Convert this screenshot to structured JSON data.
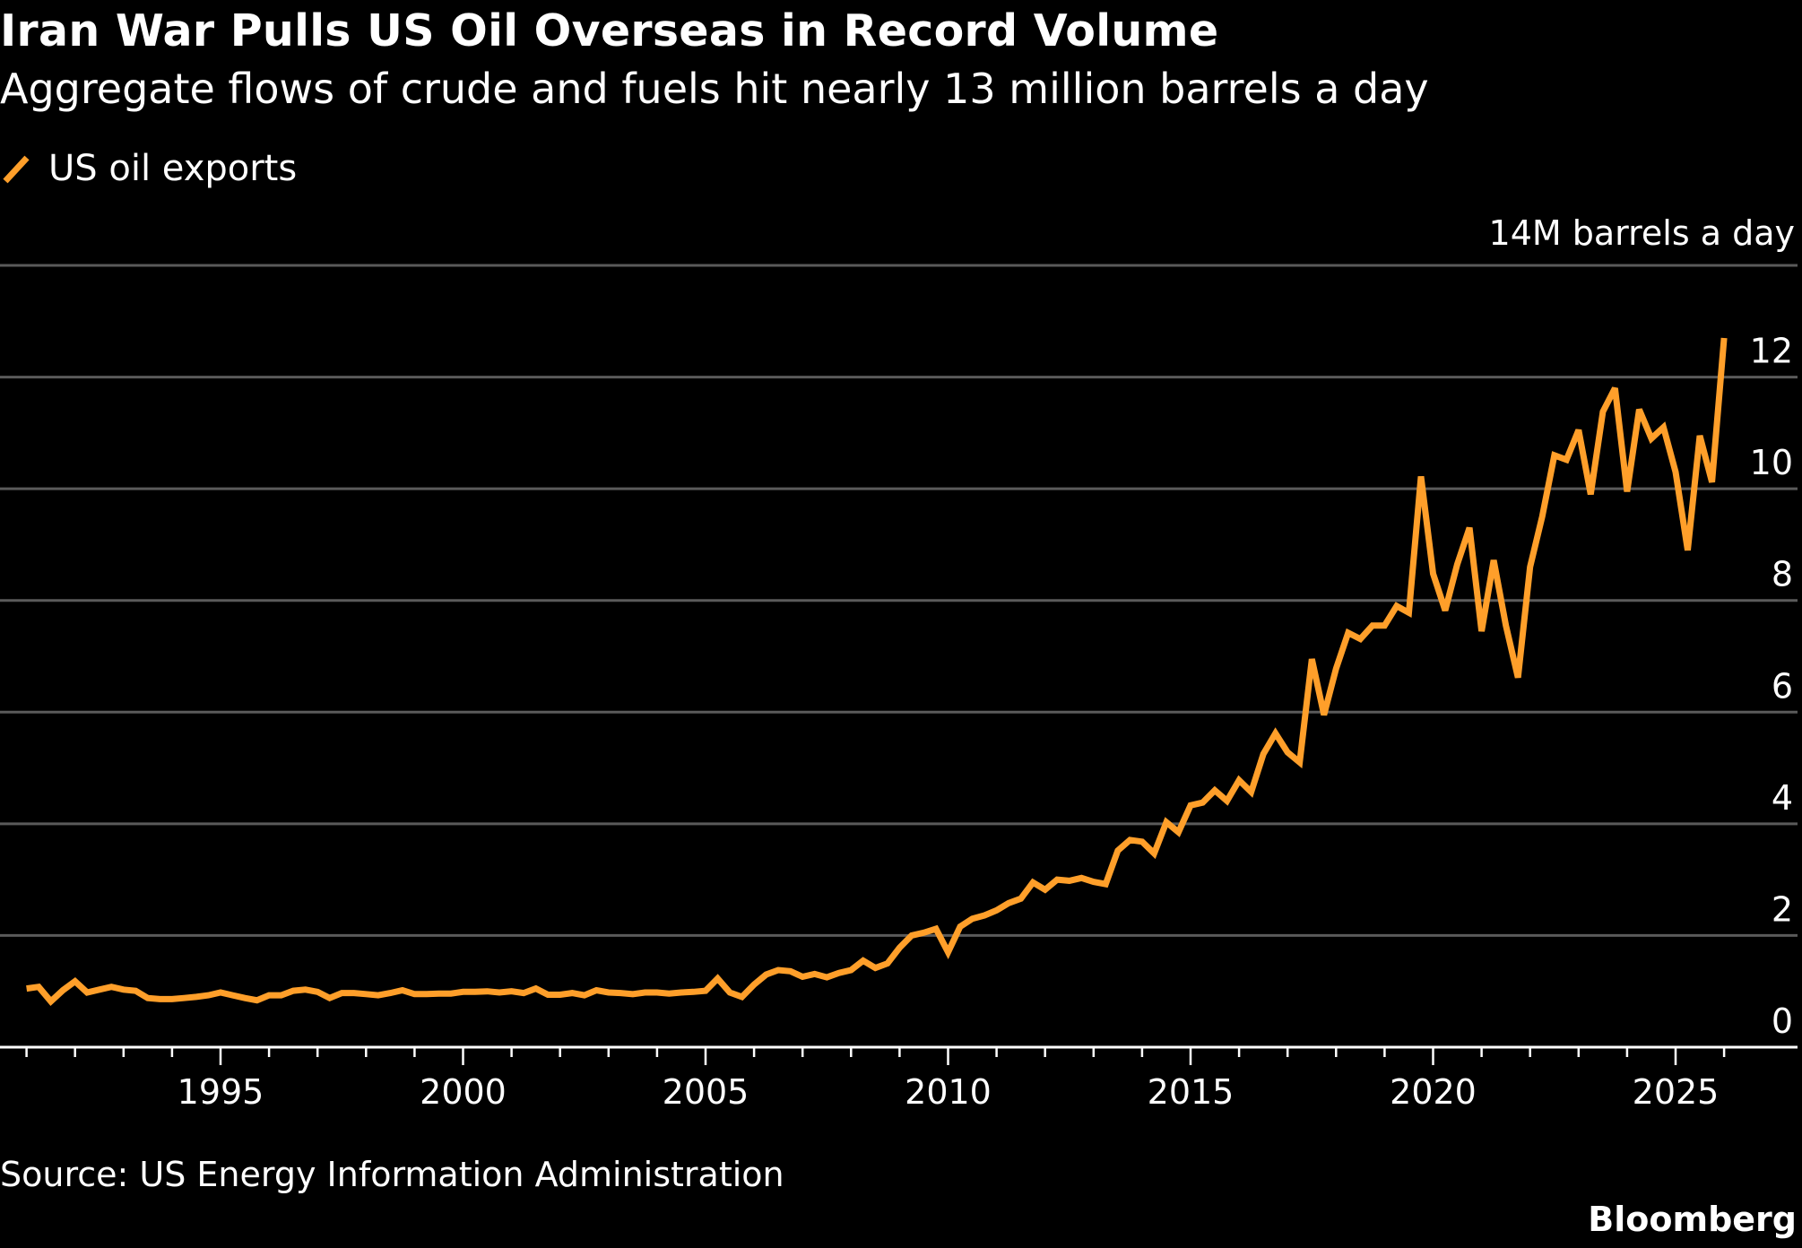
{
  "header": {
    "title": "Iran War Pulls US Oil Overseas in Record Volume",
    "subtitle": "Aggregate flows of crude and fuels hit nearly 13 million barrels a day"
  },
  "legend": {
    "items": [
      {
        "label": "US oil exports",
        "color": "#FF9F2A",
        "icon": "diagonal-line-icon"
      }
    ]
  },
  "footer": {
    "source": "Source: US Energy Information Administration",
    "brand": "Bloomberg"
  },
  "colors": {
    "background": "#000000",
    "series": "#FF9F2A",
    "grid": "#5a5a5a",
    "axis": "#ffffff",
    "text": "#ffffff"
  },
  "chart_data": {
    "type": "line",
    "title": "Iran War Pulls US Oil Overseas in Record Volume",
    "subtitle": "Aggregate flows of crude and fuels hit nearly 13 million barrels a day",
    "xlabel": "",
    "ylabel": "14M barrels a day",
    "unit_label": "14M barrels a day",
    "frequency": "quarterly",
    "x_start": 1991.0,
    "x_step": 0.25,
    "xlim": [
      1990.8,
      2027.3
    ],
    "ylim": [
      0,
      14
    ],
    "y_ticks": [
      0,
      2,
      4,
      6,
      8,
      10,
      12,
      14
    ],
    "y_tick_labels": [
      "0",
      "2",
      "4",
      "6",
      "8",
      "10",
      "12",
      "14M barrels a day"
    ],
    "x_ticks_major": [
      1995,
      2000,
      2005,
      2010,
      2015,
      2020,
      2025
    ],
    "x_tick_labels": [
      "1995",
      "2000",
      "2005",
      "2010",
      "2015",
      "2020",
      "2025"
    ],
    "x_ticks_minor_from": 1991,
    "x_ticks_minor_to": 2026,
    "grid": true,
    "legend_position": "top-left",
    "y_axis_side": "right",
    "series": [
      {
        "name": "US oil exports",
        "color": "#FF9F2A",
        "values": [
          1.05,
          1.08,
          0.82,
          1.02,
          1.18,
          0.98,
          1.03,
          1.08,
          1.03,
          1.01,
          0.88,
          0.86,
          0.86,
          0.88,
          0.9,
          0.93,
          0.98,
          0.93,
          0.88,
          0.84,
          0.93,
          0.93,
          1.01,
          1.03,
          0.99,
          0.88,
          0.97,
          0.97,
          0.95,
          0.93,
          0.97,
          1.02,
          0.95,
          0.95,
          0.96,
          0.96,
          0.99,
          0.99,
          1.0,
          0.98,
          1.0,
          0.97,
          1.05,
          0.94,
          0.94,
          0.97,
          0.93,
          1.02,
          0.98,
          0.97,
          0.95,
          0.98,
          0.98,
          0.96,
          0.98,
          0.99,
          1.01,
          1.23,
          0.98,
          0.9,
          1.12,
          1.3,
          1.38,
          1.36,
          1.26,
          1.31,
          1.25,
          1.33,
          1.38,
          1.55,
          1.42,
          1.5,
          1.78,
          2.0,
          2.05,
          2.12,
          1.7,
          2.16,
          2.3,
          2.36,
          2.45,
          2.58,
          2.66,
          2.95,
          2.82,
          3.0,
          2.98,
          3.03,
          2.96,
          2.92,
          3.52,
          3.71,
          3.68,
          3.47,
          4.03,
          3.85,
          4.33,
          4.38,
          4.6,
          4.41,
          4.78,
          4.57,
          5.25,
          5.62,
          5.28,
          5.1,
          6.95,
          5.95,
          6.78,
          7.42,
          7.31,
          7.55,
          7.55,
          7.9,
          7.78,
          10.22,
          8.48,
          7.82,
          8.65,
          9.3,
          7.45,
          8.72,
          7.55,
          6.62,
          8.6,
          9.5,
          10.6,
          10.52,
          11.05,
          9.9,
          11.38,
          11.8,
          9.95,
          11.42,
          10.9,
          11.1,
          10.3,
          8.9,
          10.95,
          10.12,
          12.7
        ]
      }
    ]
  }
}
